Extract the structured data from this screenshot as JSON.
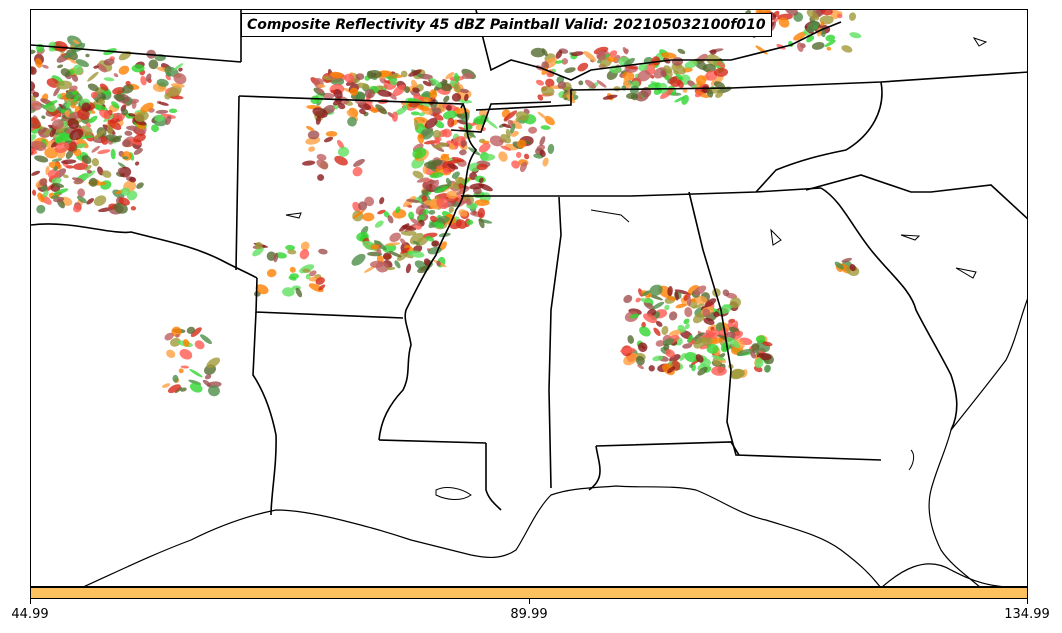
{
  "title": "Composite Reflectivity 45 dBZ Paintball Valid: 202105032100f010",
  "colorbar": {
    "color": "#ffc060",
    "ticks": [
      "44.99",
      "89.99",
      "134.99"
    ]
  },
  "map": {
    "region": "southeastern-united-states",
    "paintball_colors": [
      "#8b1a1a",
      "#d62a1a",
      "#ff5a50",
      "#ff7f00",
      "#ffa040",
      "#a09a3a",
      "#4f8f4a",
      "#2fd62f",
      "#60e060",
      "#a05050",
      "#c06060",
      "#556b2f"
    ]
  }
}
